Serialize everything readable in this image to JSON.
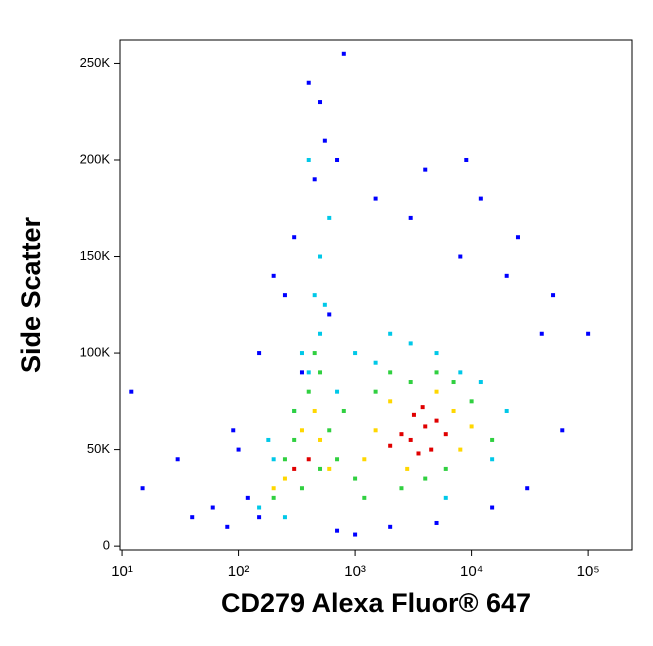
{
  "chart_data": {
    "type": "scatter",
    "x_label": "CD279 Alexa Fluor® 647",
    "y_label": "Side Scatter",
    "x_scale": "log",
    "xlim": [
      9.6,
      238000
    ],
    "xticks": [
      {
        "value": 10,
        "label": "10¹"
      },
      {
        "value": 100,
        "label": "10²"
      },
      {
        "value": 1000,
        "label": "10³"
      },
      {
        "value": 10000,
        "label": "10⁴"
      },
      {
        "value": 100000,
        "label": "10⁵"
      }
    ],
    "ylim": [
      -2000,
      262144
    ],
    "yticks": [
      0,
      {
        "value": 50000,
        "label": "50K"
      },
      {
        "value": 100000,
        "label": "100K"
      },
      {
        "value": 150000,
        "label": "150K"
      },
      {
        "value": 200000,
        "label": "200K"
      },
      {
        "value": 250000,
        "label": "250K"
      }
    ],
    "series": [
      {
        "color": "#0000ff",
        "x": [
          15,
          12,
          30,
          60,
          90,
          150,
          200,
          120,
          80,
          40,
          250,
          400,
          700,
          1500,
          3000,
          8000,
          20000,
          40000,
          60000,
          100000,
          30000,
          15000,
          800,
          500,
          300,
          600,
          450,
          550,
          2000,
          5000,
          12000,
          25000,
          50000,
          150,
          100,
          700,
          350,
          1000,
          9000,
          4000
        ],
        "y": [
          30000,
          80000,
          45000,
          20000,
          60000,
          100000,
          140000,
          25000,
          10000,
          15000,
          130000,
          240000,
          200000,
          180000,
          170000,
          150000,
          140000,
          110000,
          60000,
          110000,
          30000,
          20000,
          255000,
          230000,
          160000,
          120000,
          190000,
          210000,
          10000,
          12000,
          180000,
          160000,
          130000,
          15000,
          50000,
          8000,
          90000,
          6000,
          200000,
          195000
        ]
      },
      {
        "color": "#00c8e8",
        "x": [
          150,
          200,
          300,
          400,
          500,
          500,
          600,
          450,
          1000,
          1500,
          2000,
          3000,
          5000,
          8000,
          12000,
          20000,
          250,
          350,
          700,
          400,
          15000,
          6000,
          180,
          550
        ],
        "y": [
          20000,
          45000,
          70000,
          90000,
          110000,
          150000,
          170000,
          130000,
          100000,
          95000,
          110000,
          105000,
          100000,
          90000,
          85000,
          70000,
          15000,
          100000,
          80000,
          200000,
          45000,
          25000,
          55000,
          125000
        ]
      },
      {
        "color": "#30d040",
        "x": [
          200,
          250,
          300,
          400,
          500,
          600,
          800,
          1000,
          1500,
          2000,
          3000,
          5000,
          7000,
          10000,
          15000,
          1200,
          350,
          450,
          700,
          2500,
          4000,
          6000,
          300,
          500
        ],
        "y": [
          25000,
          45000,
          55000,
          80000,
          90000,
          60000,
          70000,
          35000,
          80000,
          90000,
          85000,
          90000,
          85000,
          75000,
          55000,
          25000,
          30000,
          100000,
          45000,
          30000,
          35000,
          40000,
          70000,
          40000
        ]
      },
      {
        "color": "#ffd700",
        "x": [
          1500,
          7000,
          2000,
          500,
          250,
          350,
          8000,
          1200,
          5000,
          2800,
          600,
          200,
          10000,
          450
        ],
        "y": [
          60000,
          70000,
          75000,
          55000,
          35000,
          60000,
          50000,
          45000,
          80000,
          40000,
          40000,
          30000,
          62000,
          70000
        ]
      },
      {
        "color": "#e00000",
        "x": [
          3000,
          4000,
          3500,
          2500,
          5000,
          4500,
          3200,
          2000,
          400,
          300,
          6000,
          3800
        ],
        "y": [
          55000,
          62000,
          48000,
          58000,
          65000,
          50000,
          68000,
          52000,
          45000,
          40000,
          58000,
          72000
        ]
      }
    ]
  }
}
